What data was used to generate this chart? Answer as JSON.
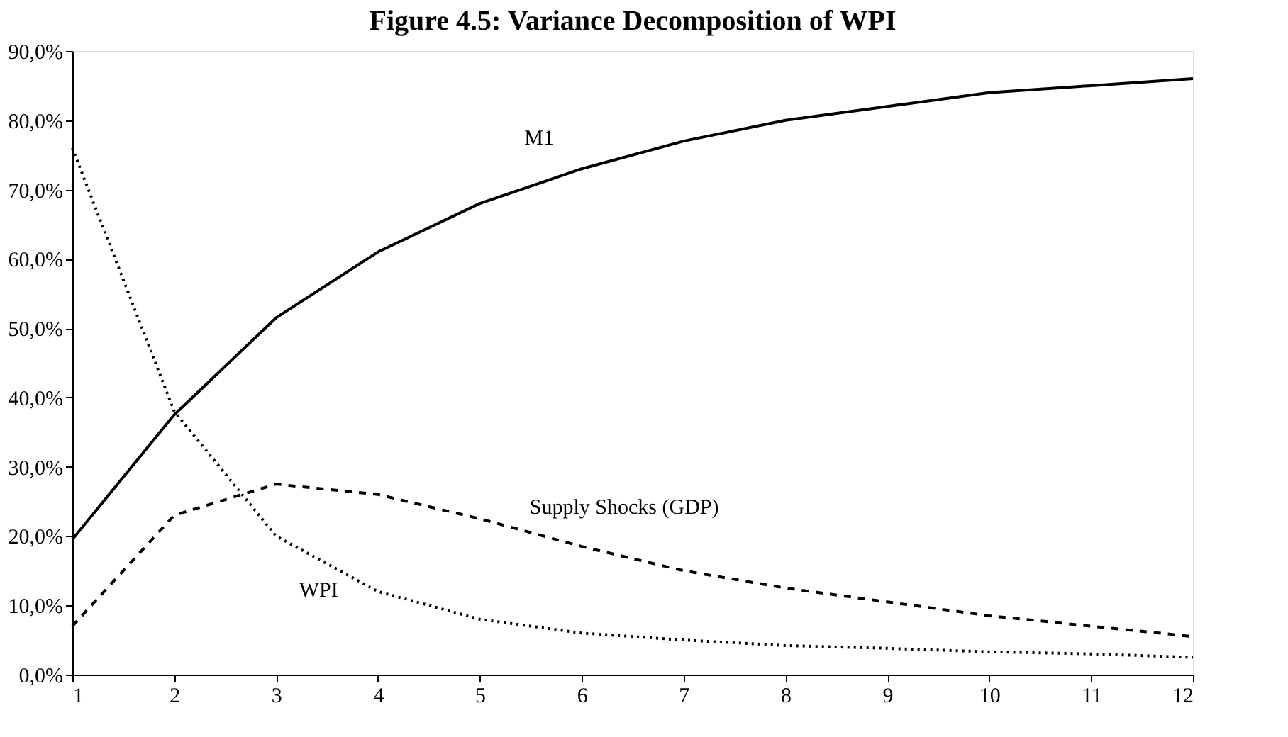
{
  "chart_data": {
    "type": "line",
    "title": "Figure 4.5: Variance Decomposition of WPI",
    "x": [
      1,
      2,
      3,
      4,
      5,
      6,
      7,
      8,
      9,
      10,
      11,
      12
    ],
    "series": [
      {
        "name": "M1",
        "color": "#000000",
        "line_style": "solid",
        "values": [
          19.5,
          37.5,
          51.5,
          61,
          68,
          73,
          77,
          80,
          82,
          84,
          85,
          86
        ]
      },
      {
        "name": "Supply Shocks (GDP)",
        "color": "#000000",
        "line_style": "dashed",
        "values": [
          7,
          23,
          27.5,
          26,
          22.5,
          18.5,
          15,
          12.5,
          10.5,
          8.5,
          7,
          5.5
        ]
      },
      {
        "name": "WPI",
        "color": "#000000",
        "line_style": "dotted",
        "values": [
          76,
          38,
          20,
          12,
          8,
          6,
          5,
          4.2,
          3.8,
          3.3,
          3,
          2.5
        ]
      }
    ],
    "xlim": [
      1,
      12
    ],
    "xticks": [
      1,
      2,
      3,
      4,
      5,
      6,
      7,
      8,
      9,
      10,
      11,
      12
    ],
    "ylim": [
      0,
      90
    ],
    "yticks": [
      {
        "value": 0,
        "label": "0,0%"
      },
      {
        "value": 10,
        "label": "10,0%"
      },
      {
        "value": 20,
        "label": "20,0%"
      },
      {
        "value": 30,
        "label": "30,0%"
      },
      {
        "value": 40,
        "label": "40,0%"
      },
      {
        "value": 50,
        "label": "50,0%"
      },
      {
        "value": 60,
        "label": "60,0%"
      },
      {
        "value": 70,
        "label": "70,0%"
      },
      {
        "value": 80,
        "label": "80,0%"
      },
      {
        "value": 90,
        "label": "90,0%"
      }
    ],
    "grid": false,
    "marker": "none"
  }
}
